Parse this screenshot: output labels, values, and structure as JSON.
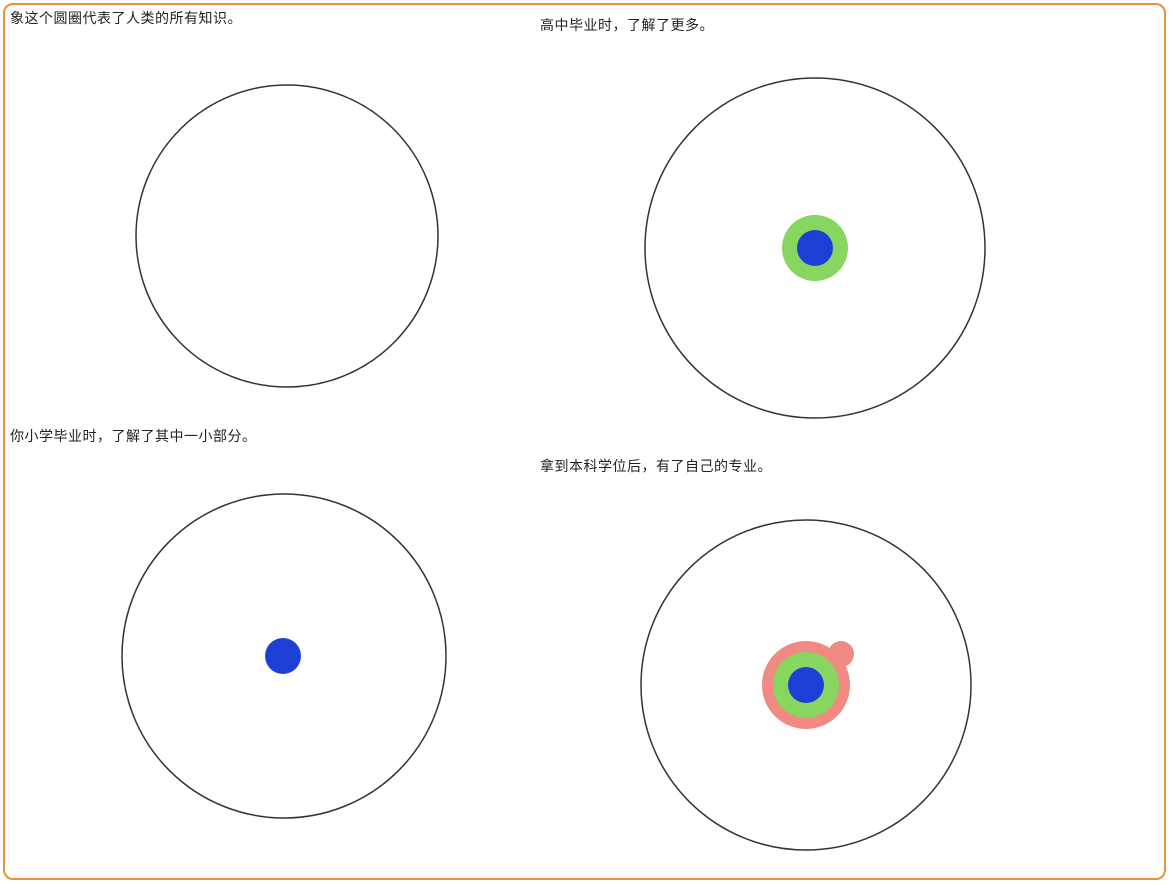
{
  "panels": [
    {
      "caption": "象这个圆圈代表了人类的所有知识。",
      "layers": []
    },
    {
      "caption": "高中毕业时，了解了更多。",
      "layers": [
        "high-school",
        "elementary"
      ]
    },
    {
      "caption": "你小学毕业时，了解了其中一小部分。",
      "layers": [
        "elementary"
      ]
    },
    {
      "caption": "拿到本科学位后，有了自己的专业。",
      "layers": [
        "bachelor",
        "high-school",
        "elementary"
      ]
    }
  ],
  "colors": {
    "frame_border": "#e8923a",
    "outline": "#333333",
    "elementary": "#1c3fd6",
    "high_school": "#86d65f",
    "bachelor": "#f08a82"
  }
}
